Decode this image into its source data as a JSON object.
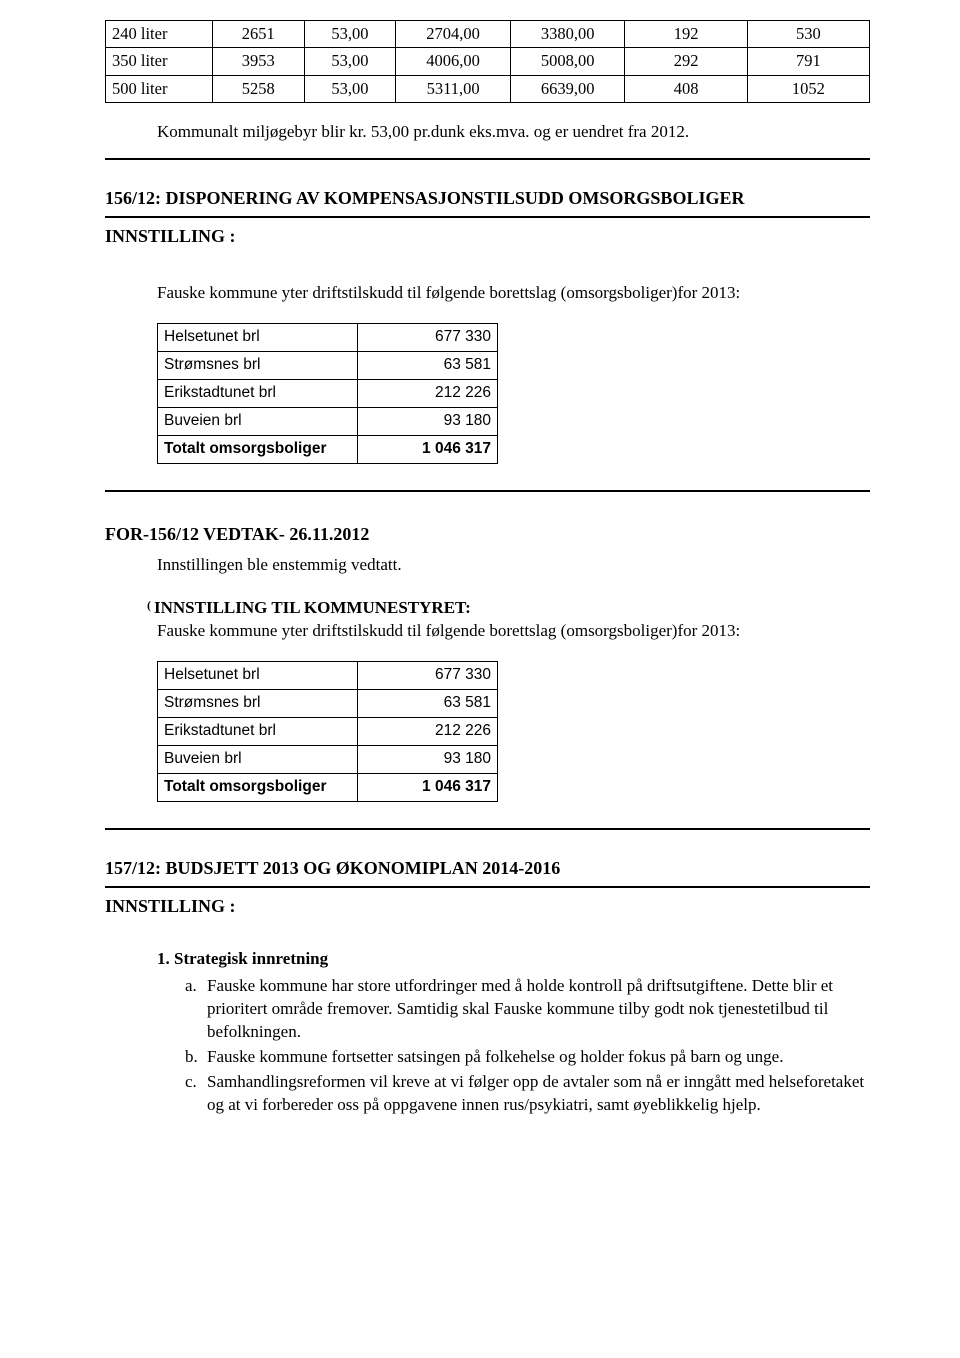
{
  "top_table": {
    "rows": [
      [
        "240 liter",
        "2651",
        "53,00",
        "2704,00",
        "3380,00",
        "192",
        "530"
      ],
      [
        "350 liter",
        "3953",
        "53,00",
        "4006,00",
        "5008,00",
        "292",
        "791"
      ],
      [
        "500 liter",
        "5258",
        "53,00",
        "5311,00",
        "6639,00",
        "408",
        "1052"
      ]
    ]
  },
  "note1": "Kommunalt miljøgebyr blir kr. 53,00 pr.dunk eks.mva. og er uendret fra 2012.",
  "sec156": {
    "title": "156/12: DISPONERING AV KOMPENSASJONSTILSUDD OMSORGSBOLIGER",
    "innstilling_label": "INNSTILLING :",
    "intro": "Fauske kommune yter driftstilskudd til følgende borettslag (omsorgsboliger)for 2013:",
    "table_rows": [
      [
        "Helsetunet brl",
        "677 330",
        false
      ],
      [
        "Strømsnes brl",
        "63 581",
        false
      ],
      [
        "Erikstadtunet brl",
        "212 226",
        false
      ],
      [
        "Buveien brl",
        "93 180",
        false
      ],
      [
        "Totalt omsorgsboliger",
        "1 046 317",
        true
      ]
    ]
  },
  "vedtak": {
    "title": "FOR-156/12 VEDTAK-  26.11.2012",
    "line": "Innstillingen ble enstemmig vedtatt.",
    "inner_title": "INNSTILLING TIL KOMMUNESTYRET:",
    "inner_para": "Fauske kommune yter driftstilskudd til følgende borettslag (omsorgsboliger)for 2013:",
    "table_rows": [
      [
        "Helsetunet brl",
        "677 330",
        false
      ],
      [
        "Strømsnes brl",
        "63 581",
        false
      ],
      [
        "Erikstadtunet brl",
        "212 226",
        false
      ],
      [
        "Buveien brl",
        "93 180",
        false
      ],
      [
        "Totalt omsorgsboliger",
        "1 046 317",
        true
      ]
    ]
  },
  "sec157": {
    "title": "157/12: BUDSJETT 2013 OG ØKONOMIPLAN 2014-2016",
    "innstilling_label": "INNSTILLING :",
    "list_title": "1. Strategisk innretning",
    "items": [
      {
        "marker": "a.",
        "text": "Fauske kommune har store utfordringer med å holde kontroll på driftsutgiftene. Dette blir et prioritert område fremover. Samtidig skal Fauske kommune tilby godt nok tjenestetilbud til befolkningen."
      },
      {
        "marker": "b.",
        "text": "Fauske kommune fortsetter satsingen på folkehelse og holder fokus på barn og unge."
      },
      {
        "marker": "c.",
        "text": "Samhandlingsreformen vil kreve at vi følger opp de avtaler som nå er inngått med helseforetaket og at vi forbereder oss på oppgavene innen rus/psykiatri, samt øyeblikkelig hjelp."
      }
    ]
  }
}
